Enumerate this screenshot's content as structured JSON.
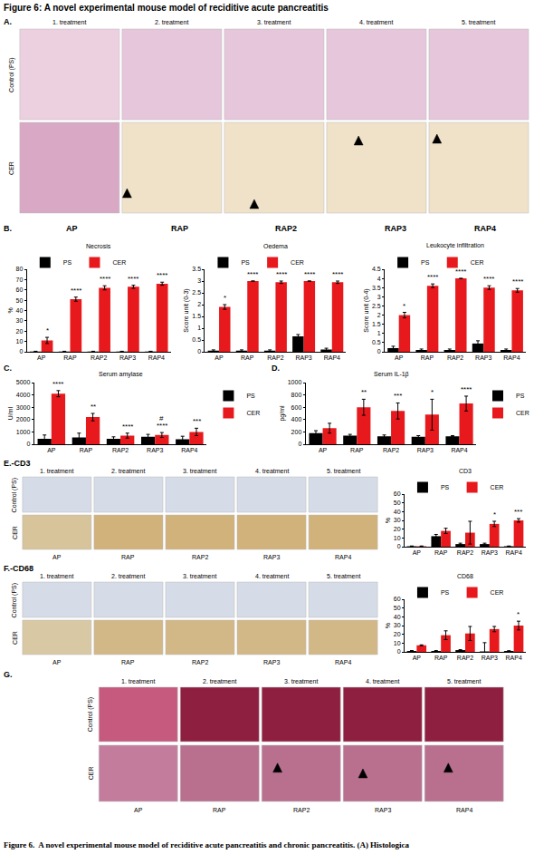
{
  "title": "Figure 6: A novel experimental mouse model of reciditive acute pancreatitis",
  "caption": "Figure 6.  A novel experimental mouse model of reciditive acute pancreatitis and chronic pancreatitis. (A) Histologica",
  "panel_labels": {
    "B": "B.",
    "C": "C.",
    "D": "D."
  },
  "panel_b_header": [
    "AP",
    "RAP",
    "RAP2",
    "RAP3",
    "RAP4"
  ],
  "image_panels": [
    {
      "label": "A.",
      "columns": [
        "1. treatment",
        "2. treatment",
        "3. treatment",
        "4. treatment",
        "5. treatment"
      ],
      "rows": [
        "Control (PS)",
        "CER"
      ]
    },
    {
      "label": "E.-CD3",
      "columns": [
        "1. treatment",
        "2. treatment",
        "3. treatment",
        "4. treatment",
        "5. treatment"
      ],
      "rows": [
        "Control (PS)",
        "CER"
      ],
      "bottom_labels": [
        "AP",
        "RAP",
        "RAP2",
        "RAP3",
        "RAP4"
      ]
    },
    {
      "label": "F.-CD68",
      "columns": [
        "1. treatment",
        "2. treatment",
        "3. treatment",
        "4. treatment",
        "5. treatment"
      ],
      "rows": [
        "Control (PS)",
        "CER"
      ],
      "bottom_labels": [
        "AP",
        "RAP",
        "RAP2",
        "RAP3",
        "RAP4"
      ]
    },
    {
      "label": "G.",
      "columns": [
        "1. treatment",
        "2. treatment",
        "3. treatment",
        "4. treatment",
        "5. treatment"
      ],
      "rows": [
        "Control (PS)",
        "CER"
      ],
      "bottom_labels": [
        "AP",
        "RAP",
        "RAP2",
        "RAP3",
        "RAP4"
      ]
    }
  ],
  "chart_data": [
    {
      "type": "bar",
      "title": "Necrosis",
      "y_label": "%",
      "categories": [
        "AP",
        "RAP",
        "RAP2",
        "RAP3",
        "RAP4"
      ],
      "series": [
        {
          "name": "PS",
          "color": "#000000",
          "values": [
            0.3,
            0.3,
            0.3,
            0.3,
            0.3
          ],
          "errors": [
            0.2,
            0.2,
            0.2,
            0.2,
            0.2
          ]
        },
        {
          "name": "CER",
          "color": "#e8191c",
          "values": [
            11,
            51,
            62,
            63,
            66
          ],
          "errors": [
            3,
            2,
            2,
            1.5,
            1.5
          ]
        }
      ],
      "ylim": [
        0,
        80
      ],
      "yticks": [
        0,
        10,
        20,
        30,
        40,
        50,
        60,
        70,
        80
      ],
      "grid": false,
      "legend": "top left",
      "annotations": [
        {
          "category": "AP",
          "text": "*"
        },
        {
          "category": "RAP",
          "text": "****"
        },
        {
          "category": "RAP2",
          "text": "****"
        },
        {
          "category": "RAP3",
          "text": "****"
        },
        {
          "category": "RAP4",
          "text": "****"
        }
      ]
    },
    {
      "type": "bar",
      "title": "Oedema",
      "y_label": "Score unit (0-3)",
      "categories": [
        "AP",
        "RAP",
        "RAP2",
        "RAP3",
        "RAP4"
      ],
      "series": [
        {
          "name": "PS",
          "color": "#000000",
          "values": [
            0.05,
            0.05,
            0.05,
            0.65,
            0.1
          ],
          "errors": [
            0.03,
            0.03,
            0.03,
            0.08,
            0.05
          ]
        },
        {
          "name": "CER",
          "color": "#e8191c",
          "values": [
            1.9,
            3,
            2.95,
            3,
            2.95
          ],
          "errors": [
            0.1,
            0,
            0.05,
            0,
            0.05
          ]
        }
      ],
      "ylim": [
        0,
        3.5
      ],
      "yticks": [
        0,
        0.5,
        1,
        1.5,
        2,
        2.5,
        3,
        3.5
      ],
      "grid": false,
      "legend": "top left",
      "annotations": [
        {
          "category": "AP",
          "text": "*"
        },
        {
          "category": "RAP",
          "text": "****"
        },
        {
          "category": "RAP2",
          "text": "****"
        },
        {
          "category": "RAP3",
          "text": "****"
        },
        {
          "category": "RAP4",
          "text": "****"
        }
      ]
    },
    {
      "type": "bar",
      "title": "Leukocyte infiltration",
      "y_label": "Score unit (0-4)",
      "categories": [
        "AP",
        "RAP",
        "RAP2",
        "RAP3",
        "RAP4"
      ],
      "series": [
        {
          "name": "PS",
          "color": "#000000",
          "values": [
            0.2,
            0.1,
            0.1,
            0.45,
            0.1
          ],
          "errors": [
            0.1,
            0.05,
            0.05,
            0.15,
            0.05
          ]
        },
        {
          "name": "CER",
          "color": "#e8191c",
          "values": [
            2,
            3.6,
            4,
            3.5,
            3.35
          ],
          "errors": [
            0.15,
            0.1,
            0,
            0.1,
            0.1
          ]
        }
      ],
      "ylim": [
        0,
        4.5
      ],
      "yticks": [
        0,
        0.5,
        1,
        1.5,
        2,
        2.5,
        3,
        3.5,
        4,
        4.5
      ],
      "grid": false,
      "legend": "top left",
      "annotations": [
        {
          "category": "AP",
          "text": "*"
        },
        {
          "category": "RAP",
          "text": "****"
        },
        {
          "category": "RAP2",
          "text": "****"
        },
        {
          "category": "RAP3",
          "text": "****"
        },
        {
          "category": "RAP4",
          "text": "****"
        }
      ]
    },
    {
      "type": "bar",
      "title": "Serum amylase",
      "y_label": "U/ml",
      "categories": [
        "AP",
        "RAP",
        "RAP2",
        "RAP3",
        "RAP4"
      ],
      "series": [
        {
          "name": "PS",
          "color": "#000000",
          "values": [
            450,
            550,
            450,
            600,
            400
          ],
          "errors": [
            300,
            350,
            150,
            200,
            250
          ]
        },
        {
          "name": "CER",
          "color": "#e8191c",
          "values": [
            4100,
            2200,
            700,
            750,
            1000
          ],
          "errors": [
            250,
            300,
            200,
            200,
            300
          ]
        }
      ],
      "ylim": [
        0,
        5000
      ],
      "yticks": [
        0,
        1000,
        2000,
        3000,
        4000,
        5000
      ],
      "grid": false,
      "legend": "top right",
      "annotations": [
        {
          "category": "AP",
          "text": "****"
        },
        {
          "category": "RAP",
          "text": "**"
        },
        {
          "category": "RAP2",
          "text": "****"
        },
        {
          "category": "RAP3",
          "text": "****"
        },
        {
          "category": "RAP3",
          "text": "#"
        },
        {
          "category": "RAP4",
          "text": "***"
        }
      ]
    },
    {
      "type": "bar",
      "title": "Serum IL-1β",
      "y_label": "pg/ml",
      "categories": [
        "AP",
        "RAP",
        "RAP2",
        "RAP3",
        "RAP4"
      ],
      "series": [
        {
          "name": "PS",
          "color": "#000000",
          "values": [
            180,
            140,
            130,
            120,
            130
          ],
          "errors": [
            40,
            20,
            20,
            20,
            10
          ]
        },
        {
          "name": "CER",
          "color": "#e8191c",
          "values": [
            260,
            600,
            540,
            480,
            660
          ],
          "errors": [
            80,
            130,
            130,
            250,
            120
          ]
        }
      ],
      "ylim": [
        0,
        1000
      ],
      "yticks": [
        0,
        200,
        400,
        600,
        800,
        1000
      ],
      "grid": false,
      "legend": "top right",
      "annotations": [
        {
          "category": "RAP",
          "text": "**"
        },
        {
          "category": "RAP2",
          "text": "***"
        },
        {
          "category": "RAP3",
          "text": "*"
        },
        {
          "category": "RAP4",
          "text": "****"
        }
      ]
    },
    {
      "type": "bar",
      "title": "CD3",
      "y_label": "%",
      "categories": [
        "AP",
        "RAP",
        "RAP2",
        "RAP3",
        "RAP4"
      ],
      "series": [
        {
          "name": "PS",
          "color": "#000000",
          "values": [
            0.5,
            12,
            3,
            3,
            0.5
          ],
          "errors": [
            0.3,
            2,
            1,
            1,
            0.3
          ]
        },
        {
          "name": "CER",
          "color": "#e8191c",
          "values": [
            0.5,
            18,
            16,
            26,
            30
          ],
          "errors": [
            0.3,
            3,
            13,
            3,
            2
          ]
        }
      ],
      "ylim": [
        0,
        60
      ],
      "yticks": [
        0,
        10,
        20,
        30,
        40,
        50,
        60
      ],
      "grid": false,
      "legend": "top left",
      "annotations": [
        {
          "category": "RAP3",
          "text": "*"
        },
        {
          "category": "RAP4",
          "text": "***"
        }
      ]
    },
    {
      "type": "bar",
      "title": "CD68",
      "y_label": "%",
      "categories": [
        "AP",
        "RAP",
        "RAP2",
        "RAP3",
        "RAP4"
      ],
      "series": [
        {
          "name": "PS",
          "color": "#000000",
          "values": [
            1,
            1,
            2,
            0.5,
            1
          ],
          "errors": [
            0.5,
            0.5,
            0.5,
            10,
            0.3
          ]
        },
        {
          "name": "CER",
          "color": "#e8191c",
          "values": [
            7.5,
            19,
            21,
            26,
            30
          ],
          "errors": [
            0.5,
            5,
            8,
            3,
            5
          ]
        }
      ],
      "ylim": [
        0,
        60
      ],
      "yticks": [
        0,
        10,
        20,
        30,
        40,
        50,
        60
      ],
      "grid": false,
      "legend": "top left",
      "annotations": [
        {
          "category": "RAP4",
          "text": "*"
        }
      ]
    }
  ]
}
